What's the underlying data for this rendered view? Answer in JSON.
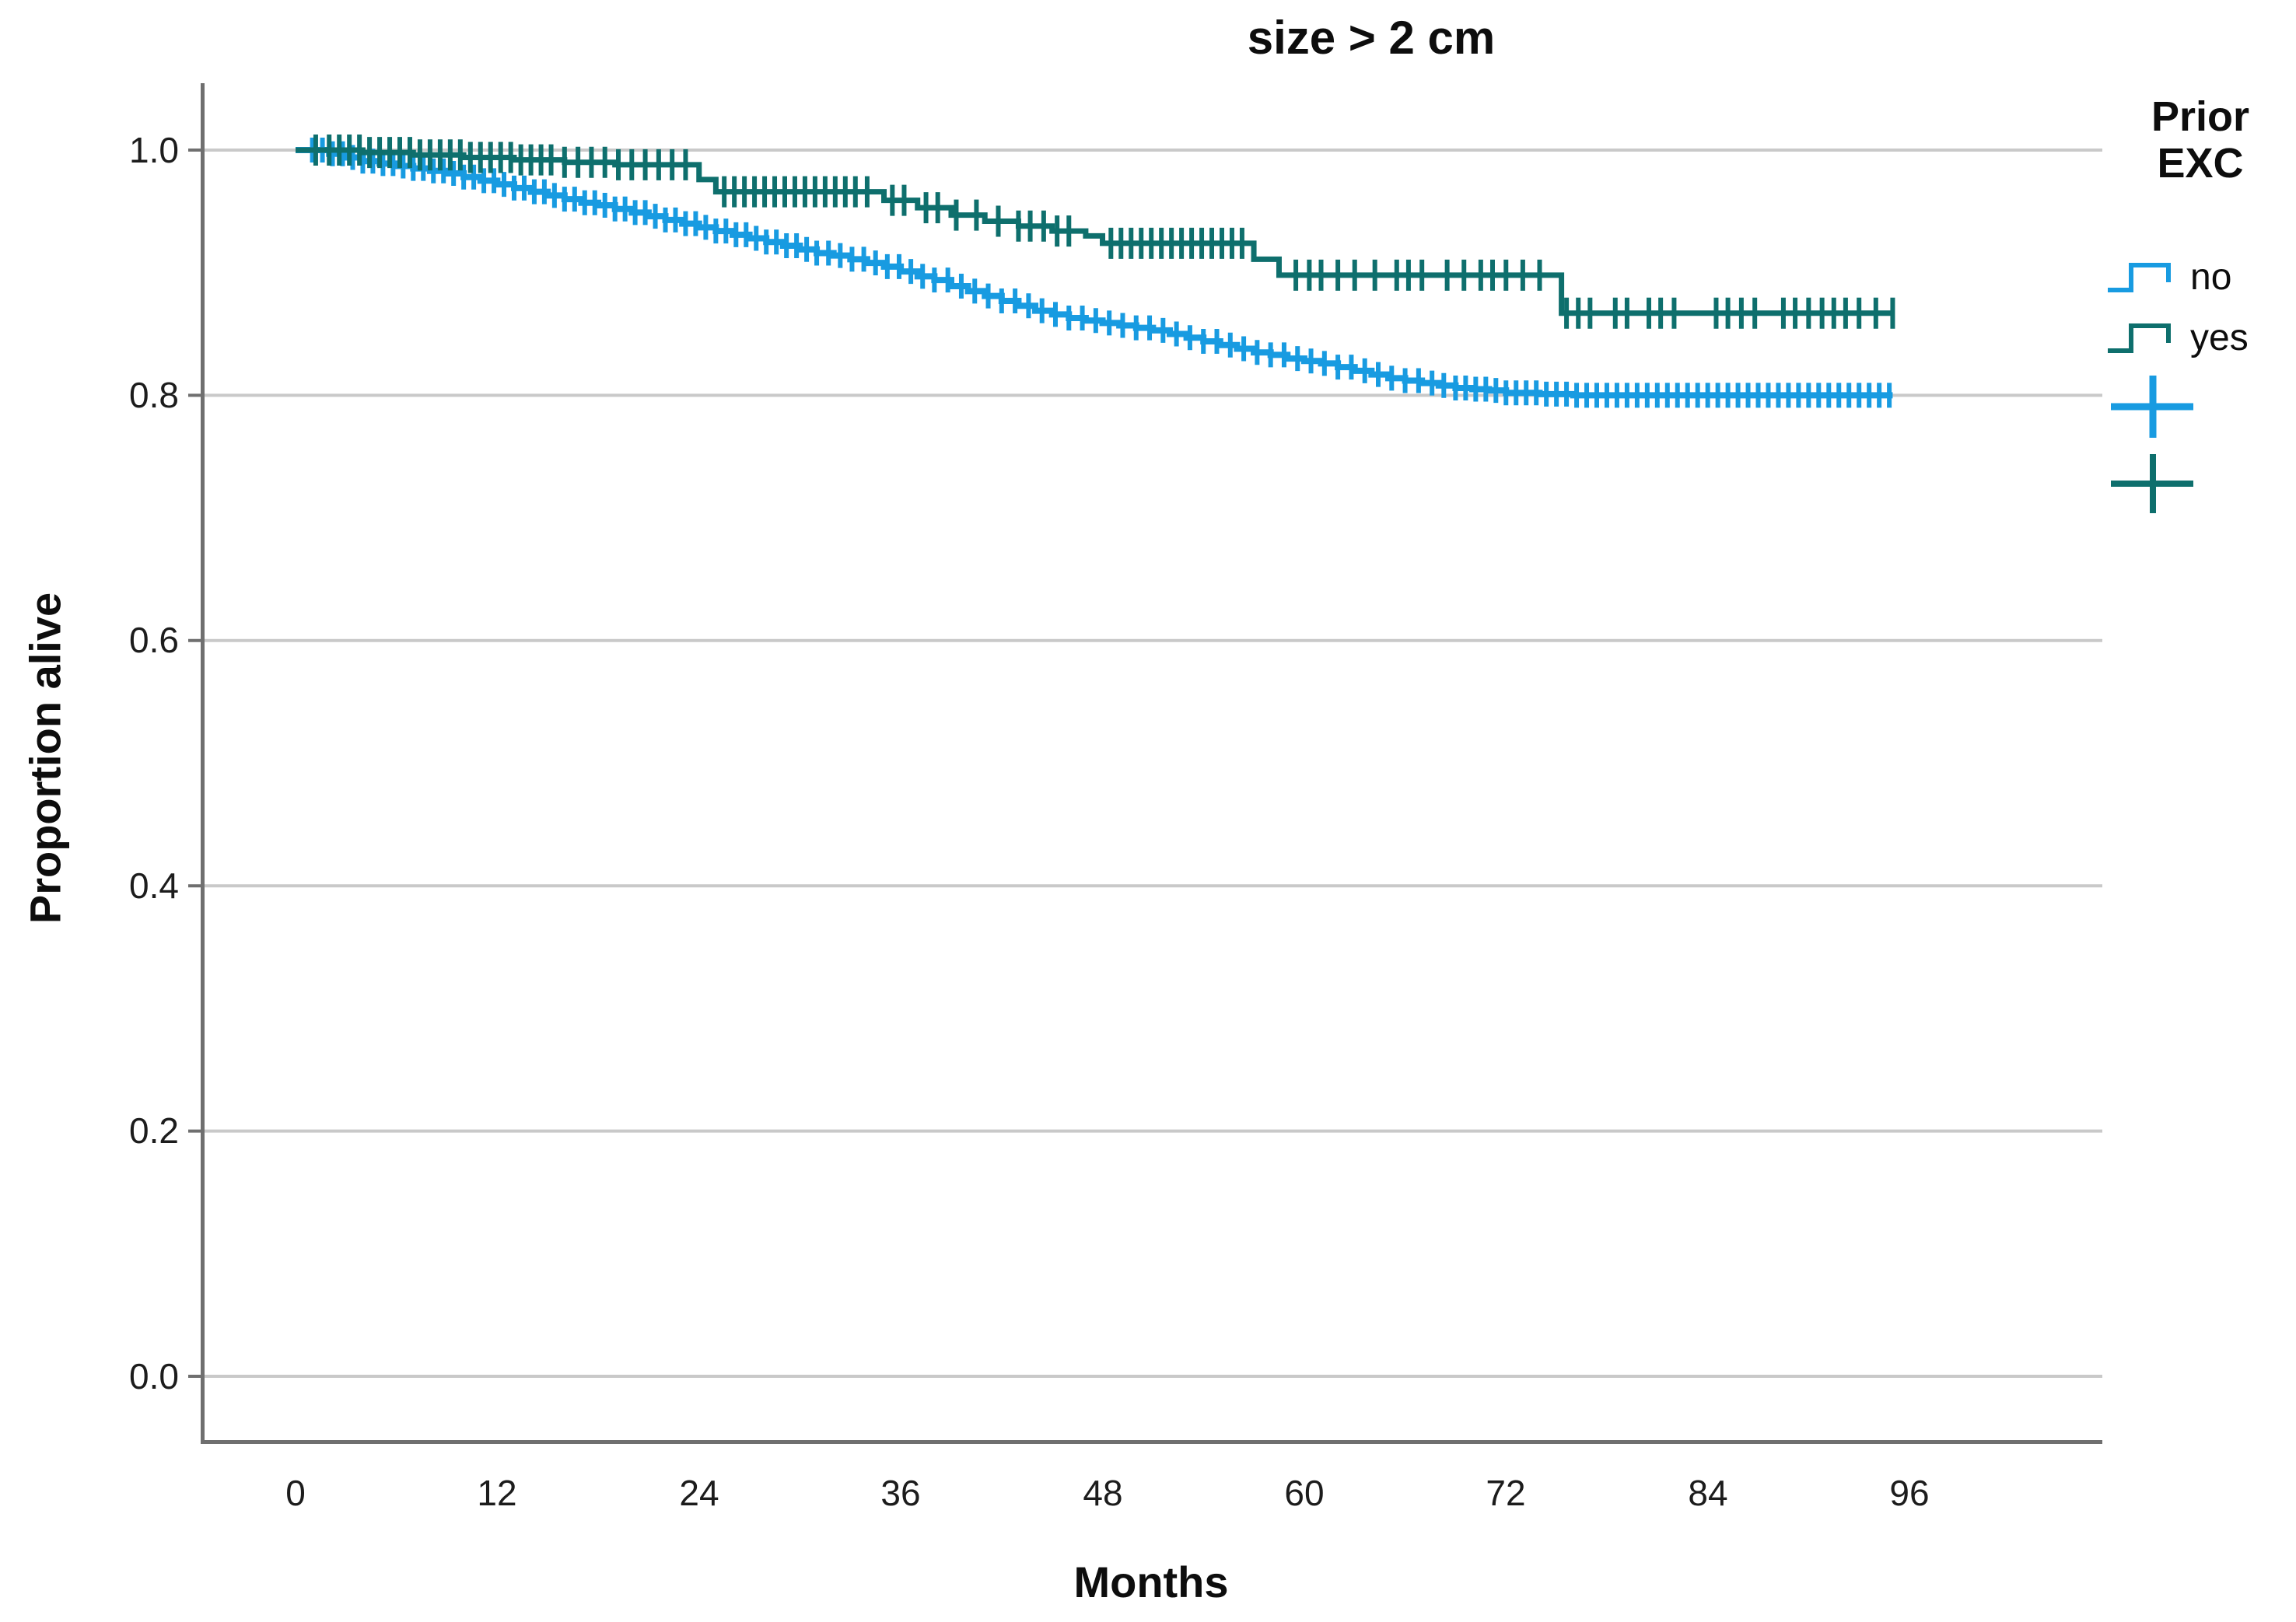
{
  "title": "size > 2 cm",
  "x_axis": {
    "label": "Months",
    "tick_labels": [
      "0",
      "12",
      "24",
      "36",
      "48",
      "60",
      "72",
      "84",
      "96"
    ]
  },
  "y_axis": {
    "label": "Proportion alive",
    "tick_labels": [
      "1.0",
      "0.8",
      "0.6",
      "0.4",
      "0.2",
      "0.0"
    ]
  },
  "legend": {
    "title": "Prior EXC"
  },
  "colors": {
    "no_curve": "#189BE1",
    "yes_curve": "#0E6F6D",
    "gridline": "#C9C9C9",
    "axis": "#6F6F6F",
    "text": "#0D0D0D"
  },
  "chart_data": {
    "type": "line",
    "subtype": "kaplan-meier-step",
    "title": "size > 2 cm",
    "xlabel": "Months",
    "ylabel": "Proportion alive",
    "x_ticks": [
      0,
      12,
      24,
      36,
      48,
      60,
      72,
      84,
      96
    ],
    "y_ticks": [
      0.0,
      0.2,
      0.4,
      0.6,
      0.8,
      1.0
    ],
    "xlim": [
      -5.6,
      107.5
    ],
    "ylim": [
      -0.06,
      1.05
    ],
    "grid": "horizontal",
    "legend_position": "right",
    "legend_title": "Prior EXC",
    "series": [
      {
        "name": "no",
        "color": "#189BE1",
        "line_width": 8,
        "censor_half_height": 16,
        "end_month": 95,
        "steps": [
          [
            0,
            1.0
          ],
          [
            2,
            0.997
          ],
          [
            3,
            0.994
          ],
          [
            4,
            0.991
          ],
          [
            5,
            0.989
          ],
          [
            6,
            0.987
          ],
          [
            7,
            0.985
          ],
          [
            8,
            0.983
          ],
          [
            9,
            0.981
          ],
          [
            10,
            0.978
          ],
          [
            11,
            0.975
          ],
          [
            12,
            0.972
          ],
          [
            13,
            0.969
          ],
          [
            14,
            0.966
          ],
          [
            15,
            0.963
          ],
          [
            16,
            0.96
          ],
          [
            17,
            0.957
          ],
          [
            18,
            0.955
          ],
          [
            19,
            0.952
          ],
          [
            20,
            0.949
          ],
          [
            21,
            0.946
          ],
          [
            22,
            0.943
          ],
          [
            23,
            0.94
          ],
          [
            24,
            0.937
          ],
          [
            25,
            0.934
          ],
          [
            26,
            0.931
          ],
          [
            27,
            0.928
          ],
          [
            28,
            0.925
          ],
          [
            29,
            0.922
          ],
          [
            30,
            0.919
          ],
          [
            31,
            0.916
          ],
          [
            32,
            0.914
          ],
          [
            33,
            0.911
          ],
          [
            34,
            0.908
          ],
          [
            35,
            0.905
          ],
          [
            36,
            0.901
          ],
          [
            37,
            0.897
          ],
          [
            38,
            0.894
          ],
          [
            39,
            0.889
          ],
          [
            40,
            0.885
          ],
          [
            41,
            0.881
          ],
          [
            42,
            0.877
          ],
          [
            43,
            0.873
          ],
          [
            44,
            0.869
          ],
          [
            45,
            0.866
          ],
          [
            46,
            0.863
          ],
          [
            47,
            0.861
          ],
          [
            48,
            0.859
          ],
          [
            49,
            0.857
          ],
          [
            50,
            0.855
          ],
          [
            51,
            0.853
          ],
          [
            52,
            0.85
          ],
          [
            53,
            0.847
          ],
          [
            54,
            0.844
          ],
          [
            55,
            0.841
          ],
          [
            56,
            0.838
          ],
          [
            57,
            0.835
          ],
          [
            58,
            0.833
          ],
          [
            59,
            0.83
          ],
          [
            60,
            0.828
          ],
          [
            61,
            0.826
          ],
          [
            62,
            0.823
          ],
          [
            63,
            0.82
          ],
          [
            64,
            0.817
          ],
          [
            65,
            0.814
          ],
          [
            66,
            0.812
          ],
          [
            67,
            0.81
          ],
          [
            68,
            0.808
          ],
          [
            69,
            0.806
          ],
          [
            70,
            0.805
          ],
          [
            71,
            0.804
          ],
          [
            72,
            0.802
          ],
          [
            74,
            0.801
          ],
          [
            76,
            0.8
          ]
        ],
        "censor_months": [
          1,
          1.6,
          2.2,
          2.8,
          3.4,
          4,
          4.6,
          5.2,
          5.8,
          6.4,
          7,
          7.6,
          8.2,
          8.8,
          9.4,
          10,
          10.6,
          11.2,
          11.8,
          12.4,
          13,
          13.6,
          14.2,
          14.8,
          15.4,
          16,
          16.6,
          17.2,
          17.8,
          18.4,
          19,
          19.6,
          20.2,
          20.8,
          21.4,
          22,
          22.6,
          23.2,
          23.8,
          24.4,
          25,
          25.6,
          26.2,
          26.8,
          27.4,
          28,
          28.6,
          29.2,
          29.8,
          30.4,
          31,
          31.7,
          32.4,
          33.1,
          33.8,
          34.5,
          35.2,
          35.9,
          36.6,
          37.3,
          38,
          38.8,
          39.6,
          40.4,
          41.2,
          42,
          42.8,
          43.6,
          44.4,
          45.2,
          46,
          46.8,
          47.6,
          48.4,
          49.2,
          50,
          50.8,
          51.6,
          52.4,
          53.2,
          54,
          54.8,
          55.6,
          56.4,
          57.2,
          58,
          58.8,
          59.6,
          60.4,
          61.2,
          62,
          62.8,
          63.6,
          64.4,
          65.2,
          66,
          66.8,
          67.6,
          68.3,
          69,
          69.6,
          70.2,
          70.8,
          71.4,
          72,
          72.6,
          73.2,
          73.8,
          74.4,
          75,
          75.6,
          76.2,
          76.8,
          77.4,
          78,
          78.6,
          79.2,
          79.8,
          80.4,
          81,
          81.6,
          82.2,
          82.8,
          83.4,
          84,
          84.6,
          85.2,
          85.8,
          86.4,
          87,
          87.6,
          88.2,
          88.8,
          89.4,
          90,
          90.6,
          91.2,
          91.8,
          92.4,
          93,
          93.6,
          94.2,
          94.8
        ]
      },
      {
        "name": "yes",
        "color": "#0E6F6D",
        "line_width": 7,
        "censor_half_height": 20,
        "end_month": 95,
        "steps": [
          [
            0,
            1.0
          ],
          [
            4,
            0.998
          ],
          [
            7,
            0.996
          ],
          [
            10,
            0.994
          ],
          [
            13,
            0.992
          ],
          [
            16,
            0.99
          ],
          [
            19,
            0.988
          ],
          [
            24,
            0.976
          ],
          [
            25,
            0.966
          ],
          [
            35,
            0.959
          ],
          [
            37,
            0.953
          ],
          [
            39,
            0.947
          ],
          [
            41,
            0.942
          ],
          [
            43,
            0.938
          ],
          [
            45,
            0.934
          ],
          [
            47,
            0.93
          ],
          [
            48,
            0.924
          ],
          [
            57,
            0.911
          ],
          [
            58.5,
            0.898
          ],
          [
            75.3,
            0.867
          ]
        ],
        "censor_months": [
          1.2,
          2,
          2.6,
          3.2,
          3.8,
          4.4,
          5,
          5.6,
          6.2,
          6.8,
          7.4,
          8,
          8.6,
          9.2,
          9.8,
          10.4,
          11,
          11.6,
          12.2,
          12.8,
          13.4,
          14,
          14.6,
          15.2,
          16,
          16.8,
          17.6,
          18.4,
          19.2,
          20,
          20.8,
          21.6,
          22.4,
          23.2,
          25.5,
          26.1,
          26.7,
          27.3,
          27.9,
          28.5,
          29.1,
          29.7,
          30.3,
          30.9,
          31.5,
          32.1,
          32.7,
          33.3,
          34,
          35.5,
          36.2,
          37.5,
          38.2,
          39.3,
          40.5,
          41.8,
          43,
          43.7,
          44.5,
          45.3,
          46,
          48.5,
          49.1,
          49.7,
          50.3,
          50.9,
          51.5,
          52.1,
          52.7,
          53.3,
          53.9,
          54.5,
          55.1,
          55.7,
          56.3,
          59.5,
          60.3,
          61,
          62,
          63,
          64.2,
          65.5,
          66.2,
          67,
          68.5,
          69.5,
          70.5,
          71.2,
          72,
          73,
          74,
          75.6,
          76.3,
          77,
          78.5,
          79.2,
          80.5,
          81.2,
          82,
          84.5,
          85.2,
          86,
          86.8,
          88.5,
          89.2,
          90,
          90.8,
          91.5,
          92.2,
          93,
          94,
          95
        ]
      }
    ]
  }
}
